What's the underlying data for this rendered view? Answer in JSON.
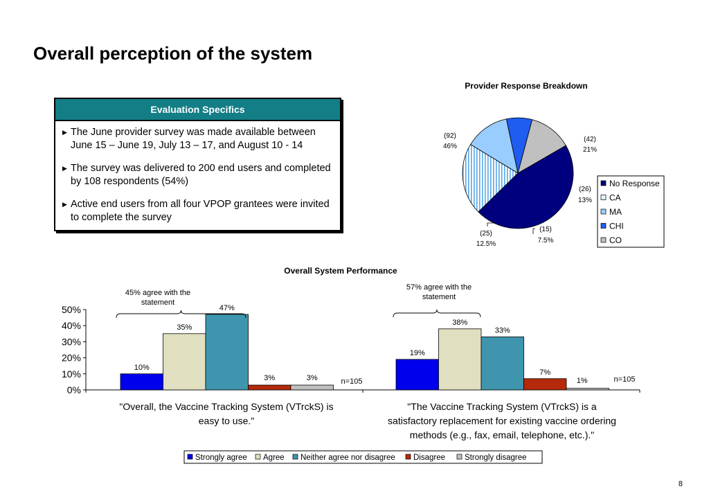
{
  "page_title": "Overall perception of the system",
  "page_number": "8",
  "evaluation": {
    "header": "Evaluation Specifics",
    "items": [
      "The June provider survey was made available between June 15 – June 19, July 13 – 17, and August 10 - 14",
      "The survey was delivered to 200 end users and completed by 108 respondents (54%)",
      "Active end users from all four VPOP grantees were invited to complete the survey"
    ]
  },
  "chart_data": [
    {
      "type": "pie",
      "title": "Provider  Response Breakdown",
      "slices": [
        {
          "label": "No Response",
          "count": "(92)",
          "percent": "46%",
          "value": 46,
          "color": "#00007f",
          "pattern": "solid"
        },
        {
          "label": "CA",
          "count": "(42)",
          "percent": "21%",
          "value": 21,
          "color": "#cceeff",
          "pattern": "vertical-stripes"
        },
        {
          "label": "MA",
          "count": "(26)",
          "percent": "13%",
          "value": 13,
          "color": "#99ccff",
          "pattern": "solid"
        },
        {
          "label": "CHI",
          "count": "(15)",
          "percent": "7.5%",
          "value": 7.5,
          "color": "#1f5cf0",
          "pattern": "solid"
        },
        {
          "label": "CO",
          "count": "(25)",
          "percent": "12.5%",
          "value": 12.5,
          "color": "#c0c0c0",
          "pattern": "solid"
        }
      ],
      "legend_position": "right"
    },
    {
      "type": "bar",
      "title": "Overall System Performance",
      "categories": [
        "\"Overall, the Vaccine Tracking System (VTrckS) is easy to use.\"",
        "\"The Vaccine Tracking System (VTrckS) is a satisfactory replacement for existing vaccine ordering methods (e.g., fax, email, telephone, etc.).\""
      ],
      "category_lines": [
        [
          "\"Overall, the Vaccine Tracking System (VTrckS) is",
          "easy to use.\""
        ],
        [
          "\"The Vaccine Tracking System (VTrckS) is a",
          "satisfactory replacement for existing vaccine ordering",
          "methods (e.g., fax, email, telephone, etc.).\""
        ]
      ],
      "series": [
        {
          "name": "Strongly agree",
          "color": "#0000ee",
          "values": [
            10,
            19
          ],
          "labels": [
            "10%",
            "19%"
          ]
        },
        {
          "name": "Agree",
          "color": "#e0e0c0",
          "values": [
            35,
            38
          ],
          "labels": [
            "35%",
            "38%"
          ]
        },
        {
          "name": "Neither agree nor disagree",
          "color": "#3e95ad",
          "values": [
            47,
            33
          ],
          "labels": [
            "47%",
            "33%"
          ]
        },
        {
          "name": "Disagree",
          "color": "#b52a0a",
          "values": [
            3,
            7
          ],
          "labels": [
            "3%",
            "7%"
          ]
        },
        {
          "name": "Strongly disagree",
          "color": "#c0c0c0",
          "values": [
            3,
            1
          ],
          "labels": [
            "3%",
            "1%"
          ]
        }
      ],
      "y_ticks": [
        "0%",
        "10%",
        "20%",
        "30%",
        "40%",
        "50%"
      ],
      "ylim": [
        0,
        50
      ],
      "n_labels": [
        "n=105",
        "n=105"
      ],
      "annotations": [
        "45% agree with the statement",
        "57% agree with the statement"
      ],
      "legend_position": "bottom"
    }
  ]
}
